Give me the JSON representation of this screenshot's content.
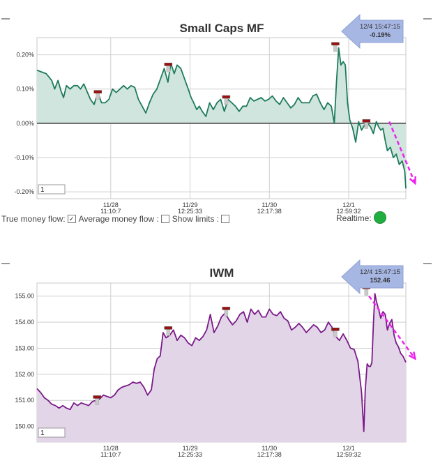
{
  "controls": {
    "true_money_flow_label": "True money flow:",
    "true_money_flow_checked": true,
    "average_money_flow_label": "Average money flow :",
    "average_money_flow_checked": false,
    "show_limits_label": "Show limits :",
    "show_limits_checked": false,
    "realtime_label": "Realtime:",
    "realtime_color": "#1fae3f"
  },
  "chart_data": [
    {
      "type": "area",
      "title": "Small Caps MF",
      "line_color": "#1e7b5a",
      "fill_color": "#cfe5dd",
      "zero_line": 0,
      "ylim": [
        -0.22,
        0.25
      ],
      "yticks": [
        0.2,
        0.1,
        0.0,
        -0.1,
        -0.2
      ],
      "ytick_labels": [
        "0.20%",
        "0.10%",
        "0.00%",
        "-0.10%",
        "-0.20%"
      ],
      "xlim": [
        0,
        1000
      ],
      "xticks": [
        200,
        415,
        630,
        845
      ],
      "xtick_labels": [
        [
          "11/28",
          "11:10:7"
        ],
        [
          "11/29",
          "12:25:33"
        ],
        [
          "11/30",
          "12:17:38"
        ],
        [
          "12/1",
          "12:59:32"
        ]
      ],
      "callout": {
        "line1": "12/4 15:47:15",
        "line2": "-0.19%"
      },
      "input_value": "1",
      "x": [
        0,
        12,
        25,
        40,
        48,
        57,
        65,
        72,
        80,
        90,
        100,
        110,
        118,
        127,
        135,
        145,
        155,
        165,
        175,
        185,
        195,
        205,
        215,
        225,
        235,
        245,
        255,
        265,
        275,
        285,
        295,
        305,
        315,
        325,
        335,
        345,
        355,
        363,
        372,
        380,
        390,
        400,
        410,
        418,
        425,
        433,
        440,
        448,
        458,
        468,
        478,
        488,
        498,
        508,
        518,
        528,
        538,
        548,
        558,
        568,
        578,
        588,
        598,
        608,
        618,
        628,
        638,
        648,
        658,
        668,
        678,
        688,
        698,
        708,
        718,
        728,
        738,
        748,
        758,
        768,
        778,
        788,
        798,
        806,
        812,
        818,
        824,
        830,
        836,
        842,
        848,
        856,
        864,
        872,
        880,
        888,
        896,
        904,
        912,
        920,
        926,
        932,
        938,
        944,
        950,
        958,
        966,
        974,
        982,
        990,
        997,
        1000
      ],
      "y": [
        0.155,
        0.15,
        0.145,
        0.125,
        0.1,
        0.125,
        0.095,
        0.075,
        0.11,
        0.1,
        0.11,
        0.11,
        0.1,
        0.115,
        0.095,
        0.07,
        0.055,
        0.09,
        0.06,
        0.06,
        0.07,
        0.1,
        0.09,
        0.1,
        0.11,
        0.1,
        0.11,
        0.105,
        0.07,
        0.05,
        0.03,
        0.06,
        0.085,
        0.1,
        0.13,
        0.16,
        0.12,
        0.175,
        0.145,
        0.17,
        0.16,
        0.13,
        0.1,
        0.075,
        0.06,
        0.04,
        0.05,
        0.035,
        0.02,
        0.06,
        0.04,
        0.06,
        0.07,
        0.035,
        0.07,
        0.06,
        0.05,
        0.035,
        0.05,
        0.05,
        0.075,
        0.065,
        0.07,
        0.075,
        0.065,
        0.07,
        0.08,
        0.065,
        0.055,
        0.075,
        0.06,
        0.045,
        0.055,
        0.075,
        0.06,
        0.06,
        0.06,
        0.08,
        0.085,
        0.06,
        0.04,
        0.06,
        0.05,
        0.0,
        0.12,
        0.22,
        0.17,
        0.18,
        0.17,
        0.06,
        0.01,
        -0.015,
        -0.055,
        0.005,
        -0.02,
        -0.005,
        0.0,
        -0.01,
        -0.03,
        0.005,
        -0.01,
        -0.02,
        -0.015,
        -0.05,
        -0.08,
        -0.07,
        -0.1,
        -0.09,
        -0.12,
        -0.11,
        -0.14,
        -0.19
      ],
      "markers_x": [
        164,
        355,
        512,
        808,
        892
      ],
      "markers_y": [
        0.09,
        0.17,
        0.075,
        0.23,
        0.005
      ],
      "trend_arrow": {
        "x": [
          955,
          1025
        ],
        "y": [
          0.005,
          -0.175
        ],
        "color": "#ee22ee"
      }
    },
    {
      "type": "area",
      "title": "IWM",
      "line_color": "#7a1a88",
      "fill_color": "#e2d5e8",
      "ylim": [
        149.4,
        155.5
      ],
      "yticks": [
        155,
        154,
        153,
        152,
        151,
        150
      ],
      "ytick_labels": [
        "155.00",
        "154.00",
        "153.00",
        "152.00",
        "151.00",
        "150.00"
      ],
      "xlim": [
        0,
        1000
      ],
      "xticks": [
        200,
        415,
        630,
        845
      ],
      "xtick_labels": [
        [
          "11/28",
          "11:10:7"
        ],
        [
          "11/29",
          "12:25:33"
        ],
        [
          "11/30",
          "12:17:38"
        ],
        [
          "12/1",
          "12:59:32"
        ]
      ],
      "callout": {
        "line1": "12/4 15:47:15",
        "line2": "152.46"
      },
      "input_value": "1",
      "x": [
        0,
        10,
        20,
        30,
        40,
        50,
        60,
        70,
        80,
        90,
        100,
        110,
        120,
        130,
        140,
        150,
        160,
        170,
        180,
        190,
        200,
        210,
        220,
        230,
        240,
        250,
        260,
        270,
        280,
        290,
        300,
        305,
        310,
        318,
        326,
        334,
        342,
        350,
        360,
        370,
        380,
        390,
        400,
        410,
        420,
        430,
        440,
        450,
        460,
        470,
        480,
        490,
        500,
        510,
        520,
        530,
        540,
        550,
        560,
        570,
        580,
        590,
        600,
        610,
        620,
        630,
        640,
        650,
        660,
        670,
        680,
        690,
        700,
        710,
        720,
        730,
        740,
        750,
        760,
        770,
        780,
        790,
        800,
        810,
        820,
        830,
        840,
        850,
        860,
        870,
        880,
        886,
        890,
        895,
        900,
        904,
        908,
        912,
        916,
        920,
        926,
        932,
        938,
        944,
        950,
        956,
        962,
        968,
        974,
        980,
        986,
        992,
        1000
      ],
      "y": [
        151.45,
        151.3,
        151.1,
        151.0,
        150.85,
        150.8,
        150.7,
        150.8,
        150.7,
        150.65,
        150.9,
        150.8,
        150.9,
        150.85,
        150.8,
        150.95,
        151.0,
        151.05,
        151.2,
        151.15,
        151.1,
        151.2,
        151.4,
        151.5,
        151.55,
        151.6,
        151.7,
        151.65,
        151.7,
        151.5,
        151.2,
        151.3,
        151.4,
        152.2,
        152.6,
        152.7,
        153.6,
        153.4,
        153.5,
        153.7,
        153.3,
        153.5,
        153.4,
        153.2,
        153.1,
        153.4,
        153.3,
        153.45,
        153.7,
        154.3,
        153.6,
        153.85,
        154.2,
        154.35,
        154.1,
        153.9,
        154.05,
        154.3,
        154.4,
        154.0,
        154.5,
        154.3,
        154.45,
        154.2,
        154.2,
        154.5,
        154.3,
        154.25,
        154.4,
        154.15,
        154.05,
        153.7,
        153.8,
        153.95,
        153.8,
        153.6,
        153.75,
        153.9,
        153.8,
        153.6,
        153.7,
        154.0,
        153.8,
        153.45,
        153.3,
        153.55,
        153.3,
        153.0,
        152.95,
        152.5,
        151.3,
        149.8,
        151.4,
        152.4,
        152.3,
        152.3,
        152.45,
        153.9,
        155.1,
        154.8,
        154.5,
        154.15,
        154.4,
        154.3,
        153.7,
        153.95,
        154.1,
        153.5,
        153.2,
        153.05,
        152.8,
        152.7,
        152.46
      ],
      "markers_x": [
        162,
        355,
        512,
        808,
        892
      ],
      "markers_y": [
        151.1,
        153.75,
        154.5,
        153.7,
        155.3
      ],
      "trend_arrow": {
        "x": [
          900,
          1025
        ],
        "y": [
          155.0,
          152.6
        ],
        "color": "#ee22ee"
      }
    }
  ]
}
